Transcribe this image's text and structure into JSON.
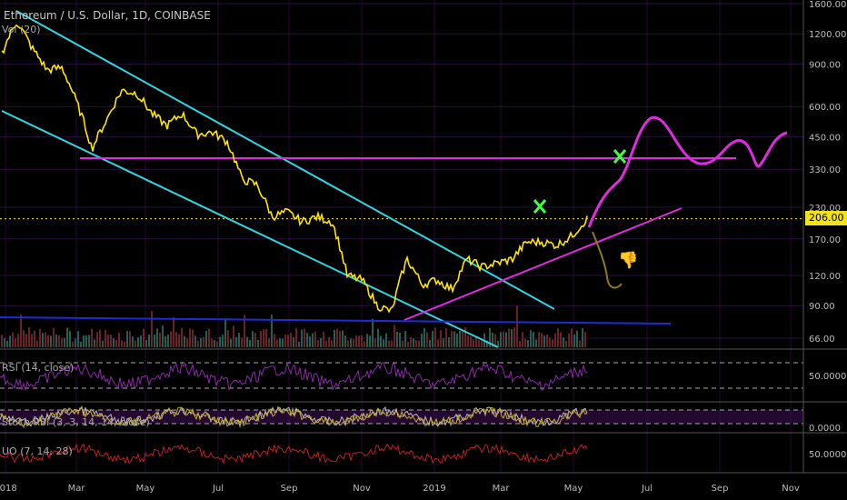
{
  "header": {
    "title": "Ethereum / U.S. Dollar, 1D, COINBASE",
    "vol_label": "Vol (20)"
  },
  "price_tag": "206.00",
  "indicators": {
    "rsi_label": "RSI (14, close)",
    "stoch_label": "Stoch RSI (3, 3, 14, 14, close)",
    "uo_label": "UO (7, 14, 28)"
  },
  "colors": {
    "background": "#000000",
    "grid": "#4a1a6b",
    "price": "#ffe600",
    "channel": "#2fd6e0",
    "support": "#e02be0",
    "volume_ma": "#1f2bd6",
    "rsi": "#8a2aa8",
    "uo": "#c02020"
  },
  "chart_data": {
    "type": "line",
    "title": "Ethereum / U.S. Dollar, 1D, COINBASE",
    "x_ticks": [
      "2018",
      "Mar",
      "May",
      "Jul",
      "Sep",
      "Nov",
      "2019",
      "Mar",
      "May",
      "Jul",
      "Sep",
      "Nov"
    ],
    "y_scale": "log",
    "y_ticks": [
      "1600.00",
      "1200.00",
      "900.00",
      "600.00",
      "450.00",
      "330.00",
      "230.00",
      "170.00",
      "120.00",
      "90.00",
      "66.00"
    ],
    "current_price": 206.0,
    "series": [
      {
        "values": [
          1000,
          1350,
          1050,
          850,
          870,
          620,
          400,
          530,
          700,
          680,
          560,
          500,
          560,
          460,
          470,
          430,
          300,
          285,
          210,
          220,
          200,
          210,
          200,
          120,
          115,
          90,
          85,
          140,
          110,
          115,
          105,
          140,
          130,
          135,
          140,
          165,
          165,
          160,
          175,
          206
        ]
      }
    ],
    "rsi_ticks": [
      "50.0000"
    ],
    "stoch_ticks": [
      "0.0000"
    ],
    "uo_ticks": [
      "50.0000"
    ]
  }
}
